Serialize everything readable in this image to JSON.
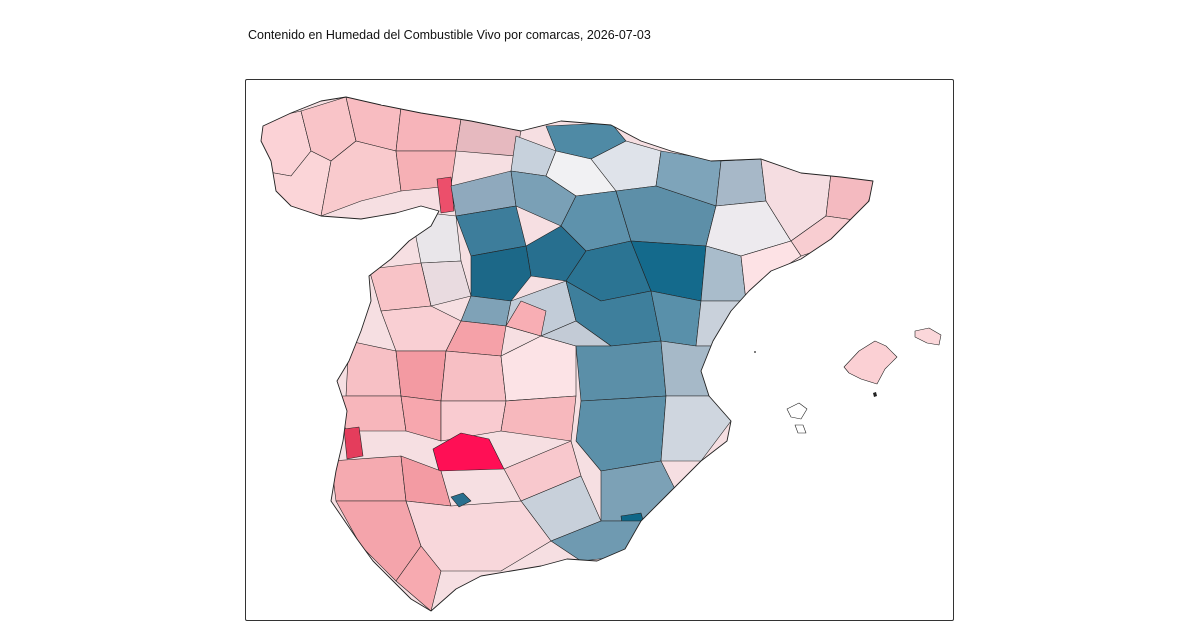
{
  "title": "Contenido en Humedad del Combustible Vivo por comarcas, 2026-07-03",
  "map": {
    "area": "España (península e Illes Balears)",
    "unit_of_division": "comarcas",
    "color_scale": {
      "low": "#ff0a50",
      "lowMid": "#f7a0a5",
      "neutral": "#f3f0f2",
      "highMid": "#9fb3c4",
      "high": "#0e6583"
    },
    "legend_shown": false
  }
}
